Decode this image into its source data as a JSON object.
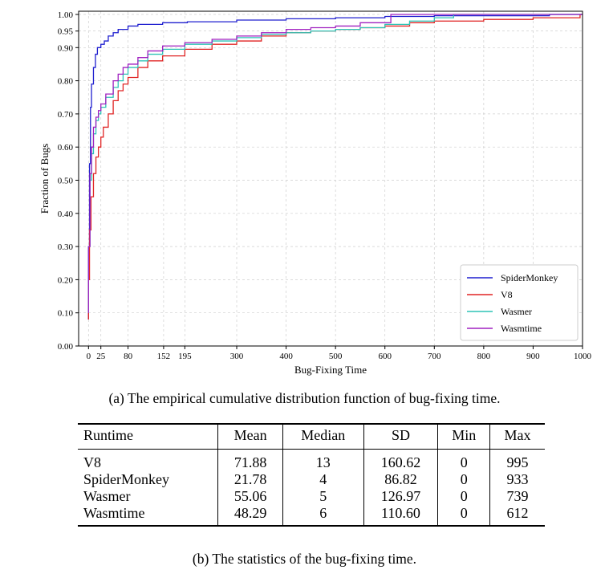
{
  "figure_a_caption": "(a) The empirical cumulative distribution function of bug-fixing time.",
  "figure_b_caption": "(b) The statistics of the bug-fixing time.",
  "chart_data": {
    "type": "line",
    "xlabel": "Bug-Fixing Time",
    "ylabel": "Fraction of Bugs",
    "xlim": [
      -20,
      1000
    ],
    "ylim": [
      0,
      1.0
    ],
    "x_ticks": [
      0,
      25,
      80,
      152,
      195,
      300,
      400,
      500,
      600,
      700,
      800,
      900,
      1000
    ],
    "y_ticks": [
      "0.00",
      "0.10",
      "0.20",
      "0.30",
      "0.40",
      "0.50",
      "0.60",
      "0.70",
      "0.80",
      "0.90",
      "0.95",
      "1.00"
    ],
    "grid": true,
    "legend_position": "bottom-right",
    "series": [
      {
        "name": "SpiderMonkey",
        "color": "#1f1fcf",
        "points": [
          [
            0,
            0.08
          ],
          [
            0,
            0.3
          ],
          [
            2,
            0.55
          ],
          [
            4,
            0.72
          ],
          [
            6,
            0.79
          ],
          [
            10,
            0.84
          ],
          [
            14,
            0.88
          ],
          [
            18,
            0.9
          ],
          [
            25,
            0.91
          ],
          [
            32,
            0.92
          ],
          [
            40,
            0.935
          ],
          [
            50,
            0.945
          ],
          [
            60,
            0.955
          ],
          [
            80,
            0.965
          ],
          [
            100,
            0.97
          ],
          [
            150,
            0.975
          ],
          [
            200,
            0.978
          ],
          [
            300,
            0.983
          ],
          [
            400,
            0.987
          ],
          [
            500,
            0.99
          ],
          [
            600,
            0.994
          ],
          [
            700,
            0.996
          ],
          [
            933,
            1.0
          ],
          [
            1000,
            1.0
          ]
        ]
      },
      {
        "name": "V8",
        "color": "#e02424",
        "points": [
          [
            0,
            0.08
          ],
          [
            0,
            0.2
          ],
          [
            2,
            0.35
          ],
          [
            5,
            0.45
          ],
          [
            10,
            0.52
          ],
          [
            15,
            0.57
          ],
          [
            20,
            0.6
          ],
          [
            25,
            0.63
          ],
          [
            30,
            0.66
          ],
          [
            40,
            0.7
          ],
          [
            50,
            0.74
          ],
          [
            60,
            0.77
          ],
          [
            70,
            0.79
          ],
          [
            80,
            0.81
          ],
          [
            100,
            0.84
          ],
          [
            120,
            0.86
          ],
          [
            150,
            0.875
          ],
          [
            195,
            0.895
          ],
          [
            250,
            0.91
          ],
          [
            300,
            0.92
          ],
          [
            350,
            0.935
          ],
          [
            400,
            0.945
          ],
          [
            450,
            0.95
          ],
          [
            500,
            0.955
          ],
          [
            550,
            0.96
          ],
          [
            600,
            0.965
          ],
          [
            650,
            0.975
          ],
          [
            700,
            0.98
          ],
          [
            800,
            0.985
          ],
          [
            900,
            0.99
          ],
          [
            995,
            1.0
          ],
          [
            1000,
            1.0
          ]
        ]
      },
      {
        "name": "Wasmer",
        "color": "#2ec4b6",
        "points": [
          [
            0,
            0.1
          ],
          [
            0,
            0.3
          ],
          [
            3,
            0.5
          ],
          [
            6,
            0.58
          ],
          [
            10,
            0.64
          ],
          [
            15,
            0.68
          ],
          [
            20,
            0.7
          ],
          [
            25,
            0.72
          ],
          [
            35,
            0.75
          ],
          [
            50,
            0.78
          ],
          [
            60,
            0.8
          ],
          [
            70,
            0.82
          ],
          [
            80,
            0.84
          ],
          [
            100,
            0.86
          ],
          [
            120,
            0.88
          ],
          [
            150,
            0.895
          ],
          [
            195,
            0.91
          ],
          [
            250,
            0.92
          ],
          [
            300,
            0.93
          ],
          [
            350,
            0.94
          ],
          [
            400,
            0.945
          ],
          [
            450,
            0.95
          ],
          [
            500,
            0.955
          ],
          [
            550,
            0.96
          ],
          [
            600,
            0.97
          ],
          [
            650,
            0.98
          ],
          [
            700,
            0.99
          ],
          [
            739,
            1.0
          ],
          [
            1000,
            1.0
          ]
        ]
      },
      {
        "name": "Wasmtime",
        "color": "#a020c0",
        "points": [
          [
            0,
            0.1
          ],
          [
            0,
            0.3
          ],
          [
            3,
            0.52
          ],
          [
            6,
            0.6
          ],
          [
            10,
            0.66
          ],
          [
            15,
            0.69
          ],
          [
            20,
            0.71
          ],
          [
            25,
            0.73
          ],
          [
            35,
            0.76
          ],
          [
            50,
            0.8
          ],
          [
            60,
            0.82
          ],
          [
            70,
            0.84
          ],
          [
            80,
            0.85
          ],
          [
            100,
            0.87
          ],
          [
            120,
            0.89
          ],
          [
            150,
            0.905
          ],
          [
            195,
            0.915
          ],
          [
            250,
            0.925
          ],
          [
            300,
            0.935
          ],
          [
            350,
            0.945
          ],
          [
            400,
            0.955
          ],
          [
            450,
            0.96
          ],
          [
            500,
            0.965
          ],
          [
            550,
            0.975
          ],
          [
            612,
            1.0
          ],
          [
            1000,
            1.0
          ]
        ]
      }
    ]
  },
  "table": {
    "headers": [
      "Runtime",
      "Mean",
      "Median",
      "SD",
      "Min",
      "Max"
    ],
    "rows": [
      [
        "V8",
        "71.88",
        "13",
        "160.62",
        "0",
        "995"
      ],
      [
        "SpiderMonkey",
        "21.78",
        "4",
        "86.82",
        "0",
        "933"
      ],
      [
        "Wasmer",
        "55.06",
        "5",
        "126.97",
        "0",
        "739"
      ],
      [
        "Wasmtime",
        "48.29",
        "6",
        "110.60",
        "0",
        "612"
      ]
    ]
  }
}
